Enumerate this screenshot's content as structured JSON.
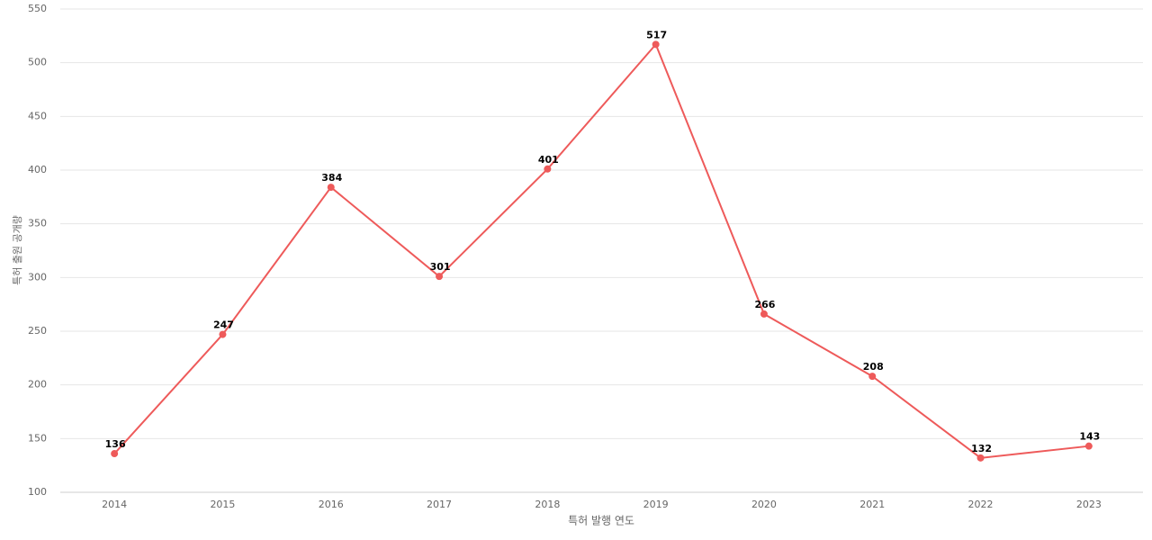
{
  "chart_data": {
    "type": "line",
    "x_label": "특허 발행 연도",
    "y_label": "특허 출원 공개량",
    "categories": [
      "2014",
      "2015",
      "2016",
      "2017",
      "2018",
      "2019",
      "2020",
      "2021",
      "2022",
      "2023"
    ],
    "series": [
      {
        "color": "#ee5a5a",
        "values": [
          136,
          247,
          384,
          301,
          401,
          517,
          266,
          208,
          132,
          143
        ]
      }
    ],
    "ylim": [
      100,
      550
    ],
    "yticks": [
      100,
      150,
      200,
      250,
      300,
      350,
      400,
      450,
      500,
      550
    ],
    "grid": true
  }
}
